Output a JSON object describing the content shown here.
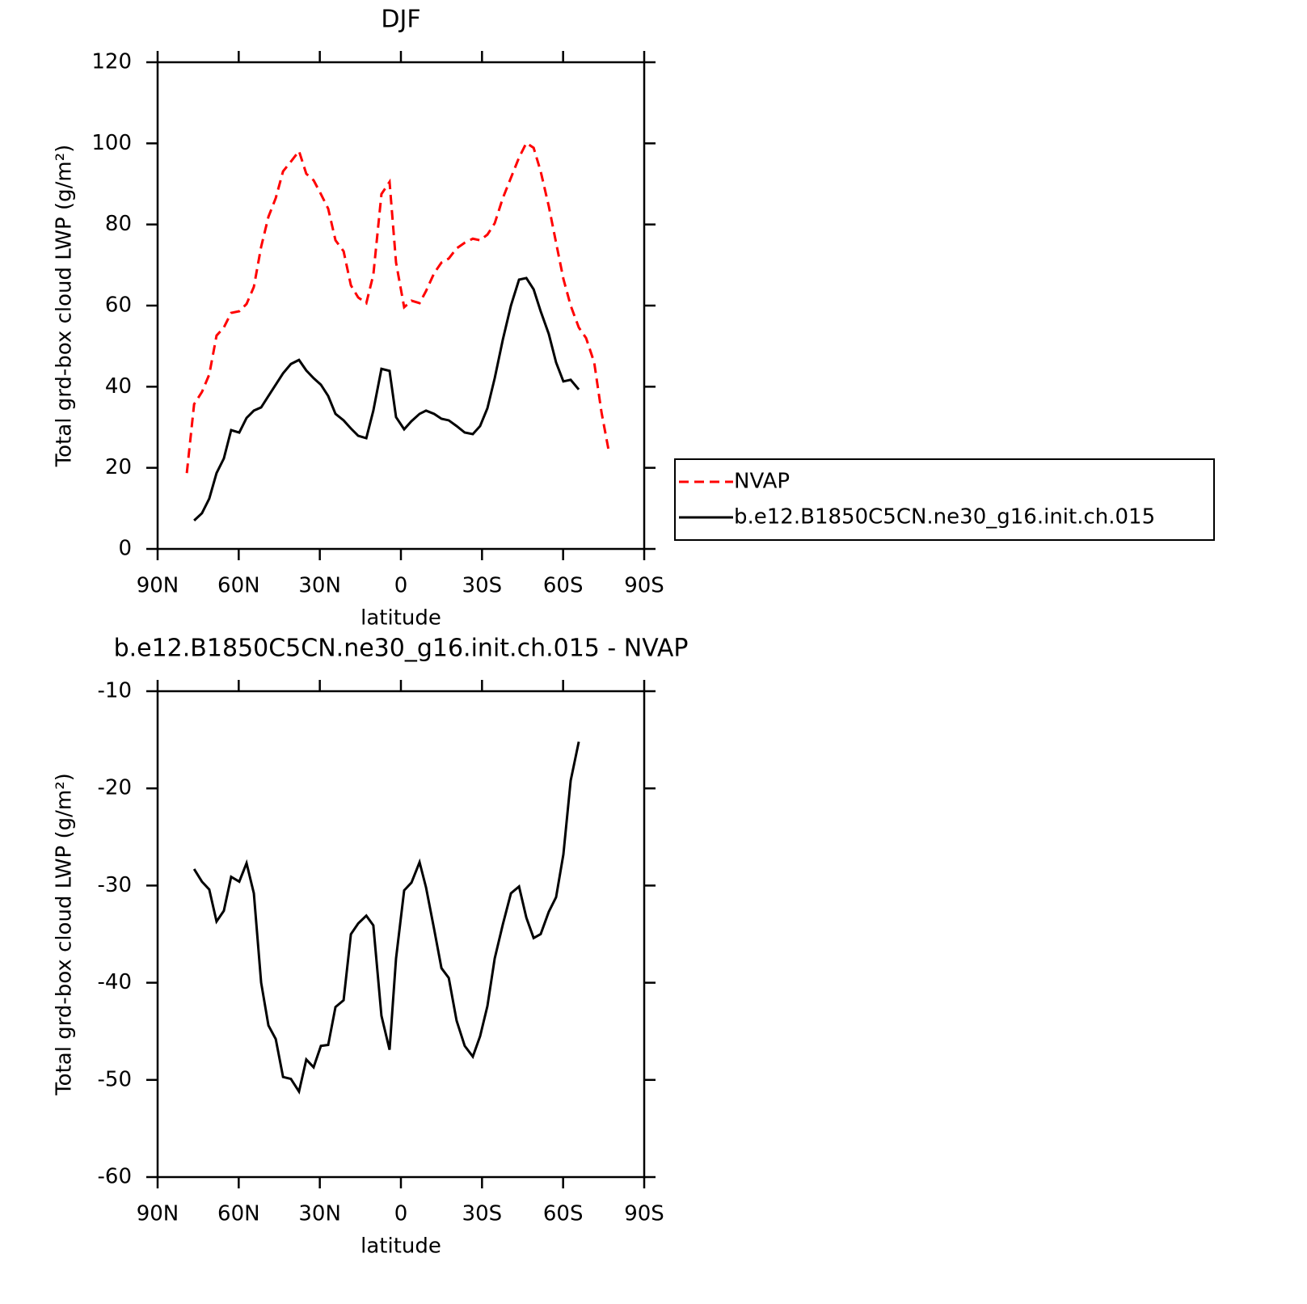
{
  "chart_data": [
    {
      "type": "line",
      "title": "DJF",
      "xlabel": "latitude",
      "ylabel": "Total grd-box cloud LWP (g/m²)",
      "xlim": [
        90,
        -90
      ],
      "xticks": [
        {
          "value": 90,
          "label": "90N"
        },
        {
          "value": 60,
          "label": "60N"
        },
        {
          "value": 30,
          "label": "30N"
        },
        0,
        {
          "value": -30,
          "label": "30S"
        },
        {
          "value": -60,
          "label": "60S"
        },
        {
          "value": -90,
          "label": "90S"
        }
      ],
      "ylim": [
        0,
        120
      ],
      "yticks": [
        0,
        20,
        40,
        60,
        80,
        100,
        120
      ],
      "legend": "right",
      "x": [
        79.2,
        76.5,
        73.6,
        70.9,
        68.2,
        65.5,
        62.8,
        59.8,
        57.1,
        54.4,
        51.7,
        49.0,
        46.3,
        43.6,
        40.7,
        37.7,
        35.0,
        32.3,
        29.6,
        26.9,
        24.2,
        21.2,
        18.5,
        15.8,
        12.8,
        10.2,
        7.2,
        4.2,
        1.8,
        -1.2,
        -3.9,
        -6.9,
        -9.3,
        -12.3,
        -15.0,
        -17.7,
        -20.6,
        -23.6,
        -26.6,
        -29.3,
        -32.0,
        -34.7,
        -37.7,
        -40.7,
        -43.7,
        -46.4,
        -49.1,
        -51.7,
        -54.7,
        -57.4,
        -60.1,
        -62.8,
        -65.8,
        -68.5,
        -71.5,
        -74.2,
        -76.9
      ],
      "series": [
        {
          "name": "NVAP",
          "color": "#ff0000",
          "dashed": true,
          "values": [
            18.7,
            35.7,
            38.7,
            43,
            52.6,
            54.6,
            58.2,
            58.6,
            60.4,
            64.6,
            74.5,
            81.9,
            86.5,
            93.1,
            95.5,
            98.1,
            92.5,
            90.9,
            87.5,
            83.9,
            76.1,
            73.4,
            65.0,
            62.0,
            60.6,
            67.6,
            87.5,
            90.5,
            70.6,
            59.6,
            61.2,
            60.6,
            63.6,
            68.0,
            70.6,
            71.6,
            74.1,
            75.5,
            76.5,
            76.1,
            77.5,
            80.3,
            86.5,
            91.5,
            96.5,
            100.1,
            98.9,
            93.1,
            84.5,
            75.5,
            66.6,
            60.0,
            54.6,
            52.0,
            46.0,
            33.7,
            24.1
          ]
        },
        {
          "name": "b.e12.B1850C5CN.ne30_g16.init.ch.015",
          "color": "#000000",
          "dashed": false,
          "values": [
            null,
            7.0,
            8.8,
            12.4,
            18.7,
            22.3,
            29.3,
            28.7,
            32.3,
            34.1,
            34.9,
            37.7,
            40.5,
            43.3,
            45.6,
            46.6,
            44.0,
            42.1,
            40.5,
            37.7,
            33.3,
            31.7,
            29.7,
            27.9,
            27.3,
            34.1,
            44.4,
            43.9,
            32.5,
            29.5,
            31.5,
            33.3,
            34.1,
            33.3,
            32.1,
            31.7,
            30.3,
            28.7,
            28.3,
            30.3,
            34.7,
            42.1,
            51.6,
            60.0,
            66.4,
            66.8,
            64.0,
            58.6,
            53.0,
            46.0,
            41.3,
            41.7,
            39.3,
            null,
            null,
            null,
            null
          ]
        }
      ]
    },
    {
      "type": "line",
      "title": "b.e12.B1850C5CN.ne30_g16.init.ch.015 - NVAP",
      "xlabel": "latitude",
      "ylabel": "Total grd-box cloud LWP (g/m²)",
      "xlim": [
        90,
        -90
      ],
      "xticks": [
        {
          "value": 90,
          "label": "90N"
        },
        {
          "value": 60,
          "label": "60N"
        },
        {
          "value": 30,
          "label": "30N"
        },
        0,
        {
          "value": -30,
          "label": "30S"
        },
        {
          "value": -60,
          "label": "60S"
        },
        {
          "value": -90,
          "label": "90S"
        }
      ],
      "ylim": [
        -60,
        -10
      ],
      "yticks": [
        -60,
        -50,
        -40,
        -30,
        -20,
        -10
      ],
      "x": [
        76.5,
        73.6,
        70.9,
        68.2,
        65.5,
        62.8,
        59.8,
        57.1,
        54.4,
        51.7,
        49.0,
        46.3,
        43.6,
        40.7,
        37.7,
        35.0,
        32.3,
        29.6,
        26.9,
        24.2,
        21.2,
        18.5,
        15.8,
        12.8,
        10.2,
        7.2,
        4.2,
        1.8,
        -1.2,
        -3.9,
        -6.9,
        -9.3,
        -12.3,
        -15.0,
        -17.7,
        -20.6,
        -23.6,
        -26.6,
        -29.3,
        -32.0,
        -34.7,
        -37.7,
        -40.7,
        -43.7,
        -46.4,
        -49.1,
        -51.7,
        -54.7,
        -57.4,
        -60.1,
        -62.8,
        -65.8
      ],
      "series": [
        {
          "color": "#000000",
          "dashed": false,
          "values": [
            -28.3,
            -29.6,
            -30.4,
            -33.7,
            -32.6,
            -29.1,
            -29.6,
            -27.7,
            -30.8,
            -40.0,
            -44.4,
            -45.8,
            -49.7,
            -49.9,
            -51.2,
            -47.9,
            -48.7,
            -46.5,
            -46.4,
            -42.5,
            -41.8,
            -35.0,
            -33.9,
            -33.1,
            -34.1,
            -43.4,
            -46.9,
            -37.5,
            -30.5,
            -29.7,
            -27.6,
            -30.2,
            -34.5,
            -38.5,
            -39.5,
            -43.9,
            -46.5,
            -47.6,
            -45.5,
            -42.4,
            -37.5,
            -34.0,
            -30.8,
            -30.1,
            -33.3,
            -35.4,
            -35.0,
            -32.7,
            -31.2,
            -26.8,
            -19.2,
            -15.2
          ]
        }
      ]
    }
  ]
}
